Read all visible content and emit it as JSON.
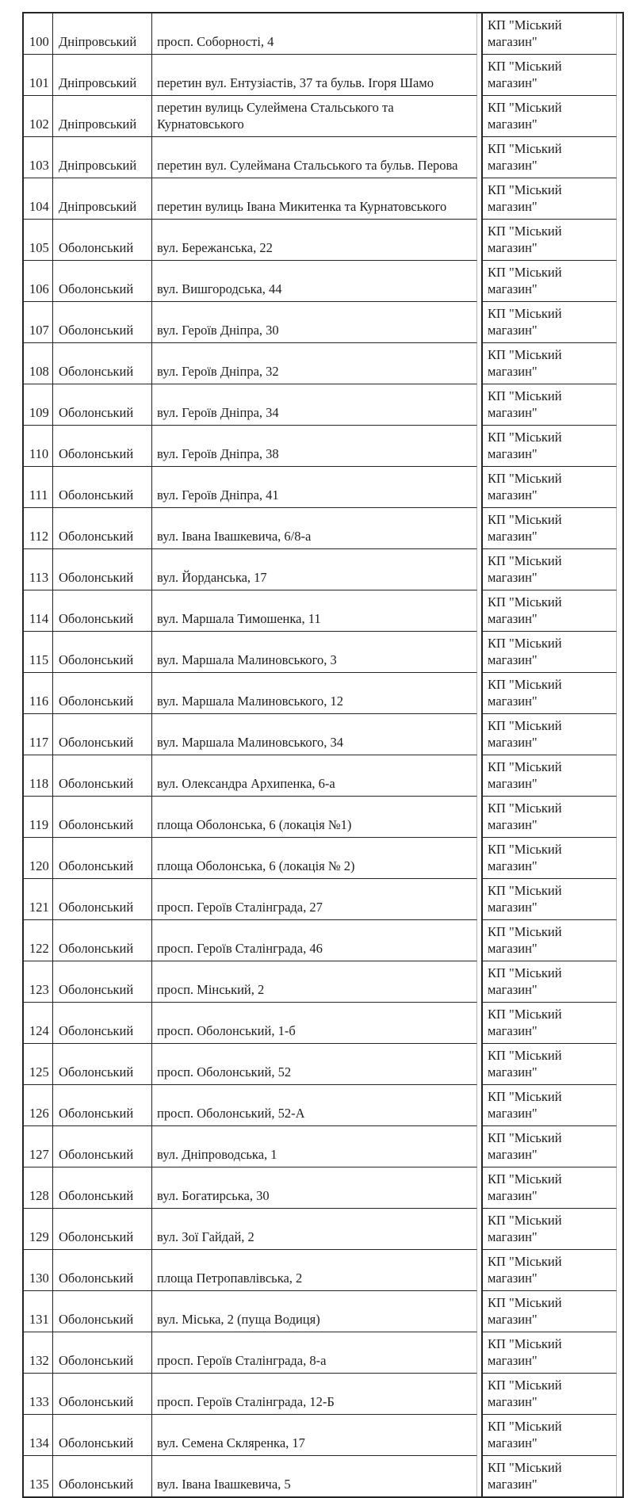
{
  "colors": {
    "border_main": "#242424",
    "border_secondary": "#bcbcbc",
    "text": "#1d1d1d",
    "background": "#ffffff"
  },
  "table": {
    "rows": [
      {
        "num": "100",
        "district": "Дніпровський",
        "address": "просп. Соборності, 4",
        "operator": "КП \"Міський магазин\""
      },
      {
        "num": "101",
        "district": "Дніпровський",
        "address": "перетин вул. Ентузіастів, 37 та бульв. Ігоря Шамо",
        "operator": "КП \"Міський магазин\""
      },
      {
        "num": "102",
        "district": "Дніпровський",
        "address": "перетин вулиць Сулеймена Стальського та\nКурнатовського",
        "operator": "КП \"Міський магазин\""
      },
      {
        "num": "103",
        "district": "Дніпровський",
        "address": "перетин вул. Сулеймана Стальського та бульв. Перова",
        "operator": "КП \"Міський магазин\""
      },
      {
        "num": "104",
        "district": "Дніпровський",
        "address": "перетин вулиць Івана Микитенка та Курнатовського",
        "operator": "КП \"Міський магазин\""
      },
      {
        "num": "105",
        "district": "Оболонський",
        "address": "вул. Бережанська, 22",
        "operator": "КП \"Міський магазин\""
      },
      {
        "num": "106",
        "district": "Оболонський",
        "address": "вул. Вишгородська, 44",
        "operator": "КП \"Міський магазин\""
      },
      {
        "num": "107",
        "district": "Оболонський",
        "address": "вул. Героїв Дніпра, 30",
        "operator": "КП \"Міський магазин\""
      },
      {
        "num": "108",
        "district": "Оболонський",
        "address": "вул. Героїв Дніпра, 32",
        "operator": "КП \"Міський магазин\""
      },
      {
        "num": "109",
        "district": "Оболонський",
        "address": "вул. Героїв Дніпра, 34",
        "operator": "КП \"Міський магазин\""
      },
      {
        "num": "110",
        "district": "Оболонський",
        "address": "вул. Героїв Дніпра, 38",
        "operator": "КП \"Міський магазин\""
      },
      {
        "num": "111",
        "district": "Оболонський",
        "address": "вул. Героїв Дніпра, 41",
        "operator": "КП \"Міський магазин\""
      },
      {
        "num": "112",
        "district": "Оболонський",
        "address": "вул. Івана Івашкевича, 6/8-а",
        "operator": "КП \"Міський магазин\""
      },
      {
        "num": "113",
        "district": "Оболонський",
        "address": "вул. Йорданська, 17",
        "operator": "КП \"Міський магазин\""
      },
      {
        "num": "114",
        "district": "Оболонський",
        "address": "вул. Маршала Тимошенка, 11",
        "operator": "КП \"Міський магазин\""
      },
      {
        "num": "115",
        "district": "Оболонський",
        "address": "вул. Маршала Малиновського, 3",
        "operator": "КП \"Міський магазин\""
      },
      {
        "num": "116",
        "district": "Оболонський",
        "address": "вул. Маршала Малиновського, 12",
        "operator": "КП \"Міський магазин\""
      },
      {
        "num": "117",
        "district": "Оболонський",
        "address": "вул. Маршала Малиновського, 34",
        "operator": "КП \"Міський магазин\""
      },
      {
        "num": "118",
        "district": "Оболонський",
        "address": "вул. Олександра Архипенка, 6-а",
        "operator": "КП \"Міський магазин\""
      },
      {
        "num": "119",
        "district": "Оболонський",
        "address": "площа Оболонська, 6 (локація №1)",
        "operator": "КП \"Міський магазин\""
      },
      {
        "num": "120",
        "district": "Оболонський",
        "address": "площа Оболонська, 6 (локація № 2)",
        "operator": "КП \"Міський магазин\""
      },
      {
        "num": "121",
        "district": "Оболонський",
        "address": "просп. Героїв Сталінграда, 27",
        "operator": "КП \"Міський магазин\""
      },
      {
        "num": "122",
        "district": "Оболонський",
        "address": "просп. Героїв Сталінграда, 46",
        "operator": "КП \"Міський магазин\""
      },
      {
        "num": "123",
        "district": "Оболонський",
        "address": "просп. Мінський, 2",
        "operator": "КП \"Міський магазин\""
      },
      {
        "num": "124",
        "district": "Оболонський",
        "address": "просп. Оболонський, 1-б",
        "operator": "КП \"Міський магазин\""
      },
      {
        "num": "125",
        "district": "Оболонський",
        "address": "просп. Оболонський, 52",
        "operator": "КП \"Міський магазин\""
      },
      {
        "num": "126",
        "district": "Оболонський",
        "address": "просп. Оболонський, 52-А",
        "operator": "КП \"Міський магазин\""
      },
      {
        "num": "127",
        "district": "Оболонський",
        "address": "вул. Дніпроводська, 1",
        "operator": "КП \"Міський магазин\""
      },
      {
        "num": "128",
        "district": "Оболонський",
        "address": "вул. Богатирська, 30",
        "operator": "КП \"Міський магазин\""
      },
      {
        "num": "129",
        "district": "Оболонський",
        "address": "вул. Зої Гайдай, 2",
        "operator": "КП \"Міський магазин\""
      },
      {
        "num": "130",
        "district": "Оболонський",
        "address": "площа Петропавлівська, 2",
        "operator": "КП \"Міський магазин\""
      },
      {
        "num": "131",
        "district": "Оболонський",
        "address": "вул. Міська, 2 (пуща Водиця)",
        "operator": "КП \"Міський магазин\""
      },
      {
        "num": "132",
        "district": "Оболонський",
        "address": "просп. Героїв Сталінграда, 8-а",
        "operator": "КП \"Міський магазин\""
      },
      {
        "num": "133",
        "district": "Оболонський",
        "address": "просп. Героїв Сталінграда, 12-Б",
        "operator": "КП \"Міський магазин\""
      },
      {
        "num": "134",
        "district": "Оболонський",
        "address": "вул. Семена Скляренка, 17",
        "operator": "КП \"Міський магазин\""
      },
      {
        "num": "135",
        "district": "Оболонський",
        "address": "вул. Івана Івашкевича, 5",
        "operator": "КП \"Міський магазин\""
      }
    ]
  }
}
